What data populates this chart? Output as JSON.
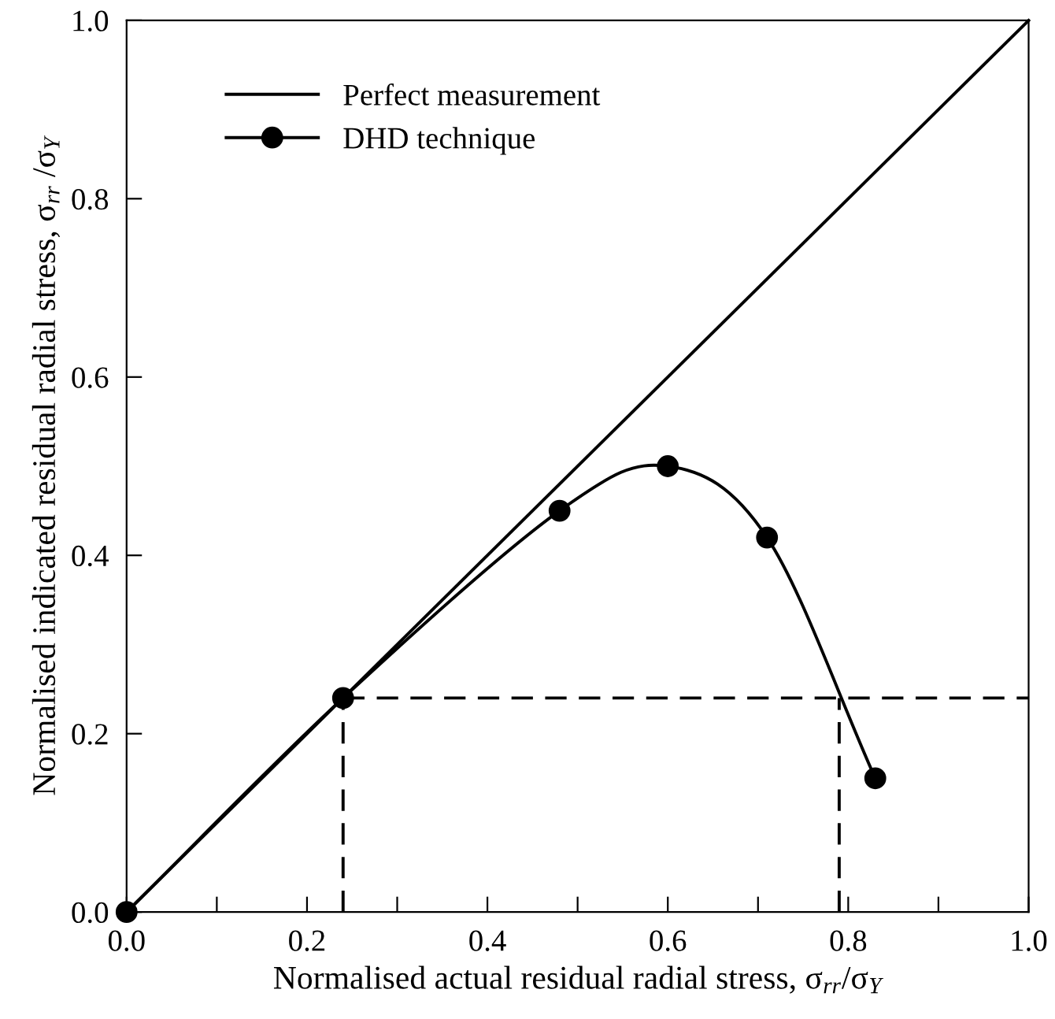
{
  "chart_data": {
    "type": "line",
    "xlabel": "Normalised actual residual radial stress, σ$_{rr}$/σ$_{Y}$",
    "ylabel": "Normalised indicated residual radial stress, σ$_{rr}$ /σ$_{Y}$",
    "series": [
      {
        "name": "Perfect measurement",
        "color": "#000000",
        "x": [
          0,
          1
        ],
        "values": [
          0,
          1
        ],
        "line_style": "solid"
      },
      {
        "name": "DHD technique",
        "color": "#000000",
        "x": [
          0,
          0.24,
          0.48,
          0.6,
          0.71,
          0.83
        ],
        "values": [
          0,
          0.24,
          0.45,
          0.5,
          0.42,
          0.15
        ],
        "marker": "circle",
        "line_style": "solid"
      },
      {
        "color": "#000000",
        "x": [
          0.24,
          1.0
        ],
        "values": [
          0.24,
          0.24
        ],
        "line_style": "dashed"
      },
      {
        "color": "#000000",
        "x": [
          0.24,
          0.24
        ],
        "values": [
          0,
          0.24
        ],
        "line_style": "dashed"
      },
      {
        "color": "#000000",
        "x": [
          0.79,
          0.79
        ],
        "values": [
          0,
          0.24
        ],
        "line_style": "dashed"
      }
    ],
    "xlim": [
      0,
      1
    ],
    "ylim": [
      0,
      1
    ],
    "xticks": [
      {
        "value": 0,
        "label": "0.0"
      },
      {
        "value": 0.1,
        "label": null
      },
      {
        "value": 0.2,
        "label": "0.2"
      },
      {
        "value": 0.3,
        "label": null
      },
      {
        "value": 0.4,
        "label": "0.4"
      },
      {
        "value": 0.5,
        "label": null
      },
      {
        "value": 0.6,
        "label": "0.6"
      },
      {
        "value": 0.7,
        "label": null
      },
      {
        "value": 0.8,
        "label": "0.8"
      },
      {
        "value": 0.9,
        "label": null
      },
      {
        "value": 1,
        "label": "1.0"
      }
    ],
    "yticks": [
      {
        "value": 0,
        "label": "0.0"
      },
      {
        "value": 0.2,
        "label": "0.2"
      },
      {
        "value": 0.4,
        "label": "0.4"
      },
      {
        "value": 0.6,
        "label": "0.6"
      },
      {
        "value": 0.8,
        "label": "0.8"
      },
      {
        "value": 1,
        "label": "1.0"
      }
    ],
    "grid": false,
    "legend": "top left"
  }
}
